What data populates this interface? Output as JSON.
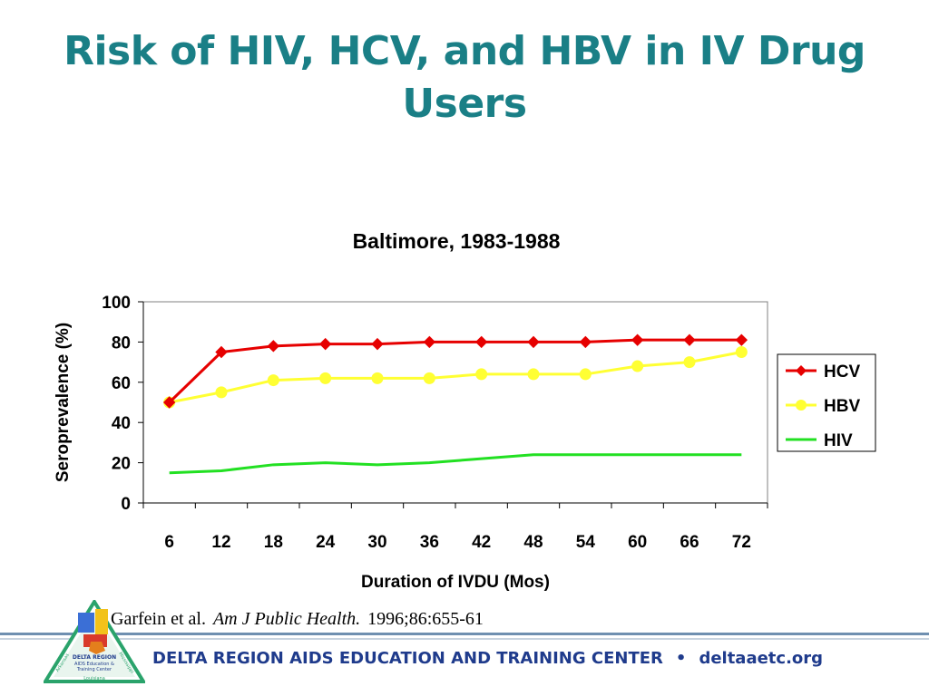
{
  "slide": {
    "title": "Risk of HIV, HCV, and HBV in IV Drug Users"
  },
  "chart_data": {
    "type": "line",
    "title": "Baltimore,  1983-1988",
    "xlabel": "Duration of IVDU (Mos)",
    "ylabel": "Seroprevalence (%)",
    "categories": [
      "6",
      "12",
      "18",
      "24",
      "30",
      "36",
      "42",
      "48",
      "54",
      "60",
      "66",
      "72"
    ],
    "ylim": [
      0,
      100
    ],
    "yticks": [
      0,
      20,
      40,
      60,
      80,
      100
    ],
    "grid": false,
    "legend_position": "right",
    "series": [
      {
        "name": "HCV",
        "color": "#e60000",
        "marker": "diamond",
        "values": [
          50,
          75,
          78,
          79,
          79,
          80,
          80,
          80,
          80,
          81,
          81,
          81
        ]
      },
      {
        "name": "HBV",
        "color": "#ffff33",
        "marker": "circle",
        "values": [
          50,
          55,
          61,
          62,
          62,
          62,
          64,
          64,
          64,
          68,
          70,
          75
        ]
      },
      {
        "name": "HIV",
        "color": "#22e022",
        "marker": "none",
        "values": [
          15,
          16,
          19,
          20,
          19,
          20,
          22,
          24,
          24,
          24,
          24,
          24
        ]
      }
    ]
  },
  "citation": {
    "authors": "Garfein et al.",
    "journal": "Am J Public Health.",
    "volume": "1996;86:655-61"
  },
  "footer": {
    "org": "DELTA REGION AIDS EDUCATION AND TRAINING CENTER",
    "bullet": "•",
    "url": "deltaaetc.org"
  },
  "logo": {
    "line1": "DELTA REGION",
    "line2": "AIDS Education &",
    "line3": "Training Center",
    "side_left": "Arkansas",
    "side_right": "Mississippi",
    "bottom": "Louisiana"
  }
}
